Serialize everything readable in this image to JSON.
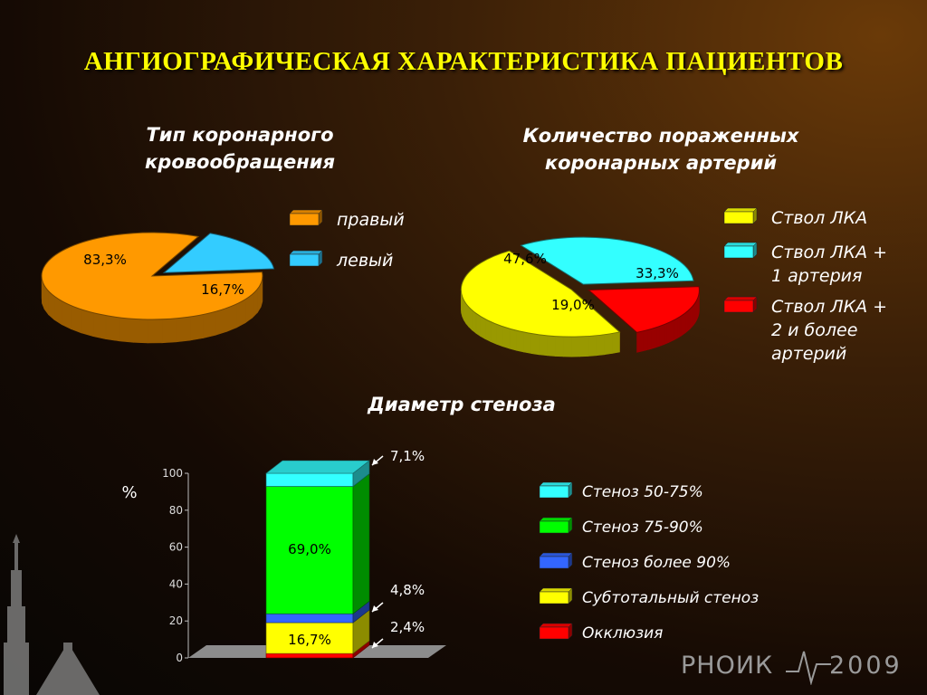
{
  "title": "АНГИОГРАФИЧЕСКАЯ  ХАРАКТЕРИСТИКА ПАЦИЕНТОВ",
  "colors": {
    "title": "#ffff00",
    "orange": "#ff9900",
    "light_blue": "#33ccff",
    "yellow": "#ffff00",
    "cyan": "#33ffff",
    "red": "#ff0000",
    "green": "#00ff00",
    "blue": "#3366ff"
  },
  "chart_data": [
    {
      "type": "pie",
      "title": "Тип коронарного кровообращения",
      "title_lines": [
        "Тип коронарного",
        "кровообращения"
      ],
      "slices": [
        {
          "name": "правый",
          "value": 83.3,
          "label": "83,3%",
          "color": "#ff9900"
        },
        {
          "name": "левый",
          "value": 16.7,
          "label": "16,7%",
          "color": "#33ccff"
        }
      ]
    },
    {
      "type": "pie",
      "title": "Количество пораженных коронарных артерий",
      "title_lines": [
        "Количество пораженных",
        "коронарных артерий"
      ],
      "slices": [
        {
          "name": "Ствол ЛКА",
          "value": 47.6,
          "label": "47,6%",
          "color": "#ffff00"
        },
        {
          "name": "Ствол ЛКА + 1 артерия",
          "legend_lines": [
            "Ствол ЛКА +",
            "1 артерия"
          ],
          "value": 33.3,
          "label": "33,3%",
          "color": "#33ffff"
        },
        {
          "name": "Ствол ЛКА + 2 и более артерий",
          "legend_lines": [
            "Ствол ЛКА +",
            "2 и более",
            "артерий"
          ],
          "value": 19.0,
          "label": "19,0%",
          "color": "#ff0000"
        }
      ]
    },
    {
      "type": "bar",
      "stacked": true,
      "title": "Диаметр стеноза",
      "ylabel": "%",
      "ylim": [
        0,
        100
      ],
      "yticks": [
        "0",
        "20",
        "40",
        "60",
        "80",
        "100"
      ],
      "series": [
        {
          "name": "Окклюзия",
          "value": 2.4,
          "label": "2,4%",
          "color": "#ff0000"
        },
        {
          "name": "Субтотальный стеноз",
          "value": 16.7,
          "label": "16,7%",
          "color": "#ffff00"
        },
        {
          "name": "Стеноз более 90%",
          "value": 4.8,
          "label": "4,8%",
          "color": "#3366ff"
        },
        {
          "name": "Стеноз 75-90%",
          "value": 69.0,
          "label": "69,0%",
          "color": "#00ff00"
        },
        {
          "name": "Стеноз 50-75%",
          "value": 7.1,
          "label": "7,1%",
          "color": "#33ffff"
        }
      ],
      "legend_order": [
        "Стеноз 50-75%",
        "Стеноз 75-90%",
        "Стеноз более 90%",
        "Субтотальный стеноз",
        "Окклюзия"
      ]
    }
  ],
  "footer": {
    "logo": "РНОИК",
    "year": "2009"
  }
}
